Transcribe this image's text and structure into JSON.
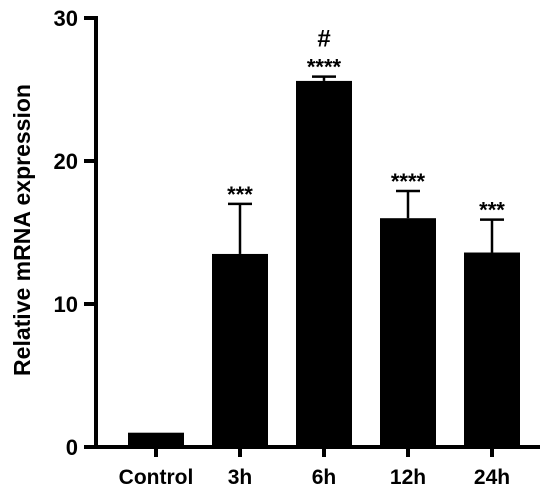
{
  "chart_data": {
    "type": "bar",
    "ylabel": "Relative mRNA expression",
    "xlabel": "",
    "title": "",
    "ylim": [
      0,
      30
    ],
    "yticks": [
      0,
      10,
      20,
      30
    ],
    "grid": false,
    "legend": "none",
    "bar_color": "#000000",
    "categories": [
      "Control",
      "3h",
      "6h",
      "12h",
      "24h"
    ],
    "values": [
      1.0,
      13.5,
      25.6,
      16.0,
      13.6
    ],
    "errors": [
      0.0,
      3.5,
      0.3,
      1.9,
      2.3
    ],
    "significance": [
      "",
      "***",
      "****",
      "****",
      "***"
    ],
    "annotations": [
      {
        "category": "6h",
        "text": "#"
      }
    ]
  }
}
